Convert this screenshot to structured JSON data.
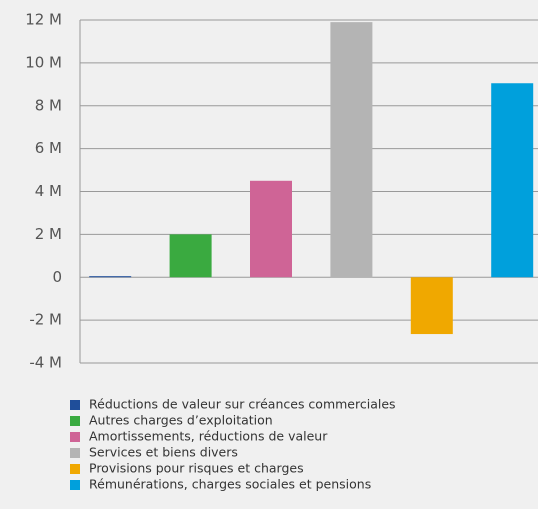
{
  "chart_data": {
    "type": "bar",
    "series": [
      {
        "name": "Réductions de valeur sur créances commerciales",
        "color": "#1f4e9a",
        "values": [
          0.05
        ]
      },
      {
        "name": "Autres charges d’exploitation",
        "color": "#3aaa40",
        "values": [
          2.0
        ]
      },
      {
        "name": "Amortissements, réductions de valeur",
        "color": "#cf6496",
        "values": [
          4.5
        ]
      },
      {
        "name": "Services et biens divers",
        "color": "#b4b4b4",
        "values": [
          11.9
        ]
      },
      {
        "name": "Provisions pour risques et charges",
        "color": "#f0a800",
        "values": [
          -2.65
        ]
      },
      {
        "name": "Rémunérations, charges sociales et pensions",
        "color": "#00a0dc",
        "values": [
          9.05
        ]
      }
    ],
    "ylim": [
      -4,
      12
    ],
    "yticks": [
      {
        "value": -4,
        "label": "-4 M"
      },
      {
        "value": -2,
        "label": "-2 M"
      },
      0,
      {
        "value": 2,
        "label": "2 M"
      },
      {
        "value": 4,
        "label": "4 M"
      },
      {
        "value": 6,
        "label": "6 M"
      },
      {
        "value": 8,
        "label": "8 M"
      },
      {
        "value": 10,
        "label": "10 M"
      },
      {
        "value": 12,
        "label": "12 M"
      }
    ],
    "grid": true
  }
}
